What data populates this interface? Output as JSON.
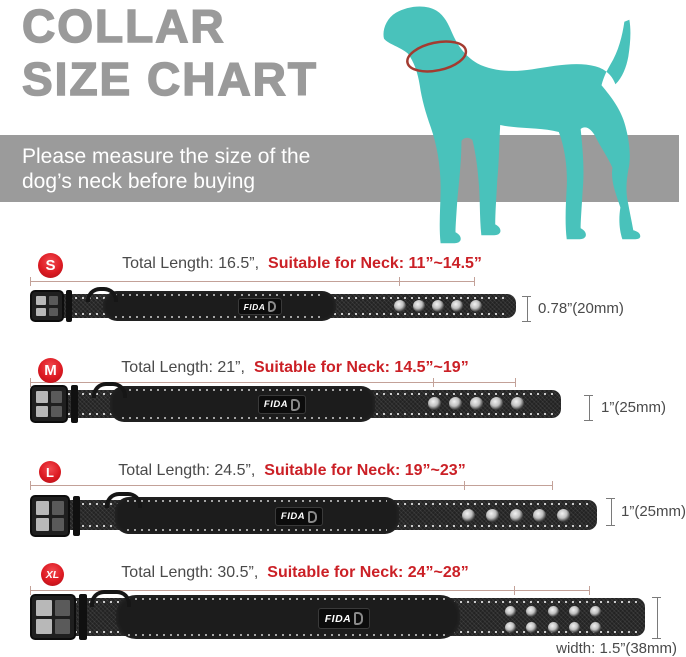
{
  "title": {
    "line1": "COLLAR",
    "line2": "SIZE CHART"
  },
  "banner": {
    "line1": "Please measure the size of the",
    "line2": "dog’s neck before buying"
  },
  "brand_label": "FIDA",
  "icons": {
    "dog": "dog-silhouette-icon",
    "neck_ring": "neck-measure-ring-icon"
  },
  "colors": {
    "title_gray": "#9a9a9a",
    "banner_gray": "#9b9b9b",
    "dog_teal": "#49c2bb",
    "accent_red": "#cb2026",
    "badge_red": "#dd1a22",
    "text_dark": "#4a4a4a",
    "ruler_tan": "#c3a198"
  },
  "sizes": [
    {
      "badge": "S",
      "total_length": "Total Length: 16.5”,",
      "neck_range": "Suitable for Neck: 11”~14.5”",
      "width_label": "0.78”(20mm)",
      "holes_per_row": 5,
      "hole_rows": 1
    },
    {
      "badge": "M",
      "total_length": "Total Length: 21”,",
      "neck_range": "Suitable for Neck: 14.5”~19”",
      "width_label": "1”(25mm)",
      "holes_per_row": 5,
      "hole_rows": 1
    },
    {
      "badge": "L",
      "total_length": "Total Length: 24.5”,",
      "neck_range": "Suitable for Neck: 19”~23”",
      "width_label": "1”(25mm)",
      "holes_per_row": 5,
      "hole_rows": 1
    },
    {
      "badge": "XL",
      "total_length": "Total Length: 30.5”,",
      "neck_range": "Suitable for Neck: 24”~28”",
      "width_label": "width: 1.5”(38mm)",
      "holes_per_row": 5,
      "hole_rows": 2
    }
  ]
}
